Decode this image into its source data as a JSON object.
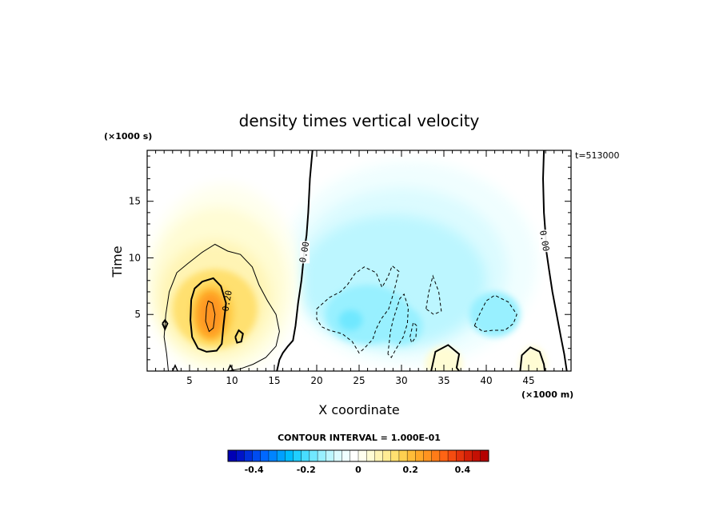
{
  "chart_data": {
    "type": "heatmap",
    "title": "density times vertical velocity",
    "xlabel": "X coordinate",
    "ylabel": "Time",
    "x_unit_note": "(×1000 m)",
    "y_unit_note": "(×1000 s)",
    "time_stamp": "t=513000",
    "xlim": [
      0,
      50
    ],
    "ylim": [
      0,
      19.5
    ],
    "x_ticks": [
      {
        "value": 5,
        "label": "5"
      },
      {
        "value": 10,
        "label": "10"
      },
      {
        "value": 15,
        "label": "15"
      },
      {
        "value": 20,
        "label": "20"
      },
      {
        "value": 25,
        "label": "25"
      },
      {
        "value": 30,
        "label": "30"
      },
      {
        "value": 35,
        "label": "35"
      },
      {
        "value": 40,
        "label": "40"
      },
      {
        "value": 45,
        "label": "45"
      }
    ],
    "y_ticks": [
      {
        "value": 5,
        "label": "5"
      },
      {
        "value": 10,
        "label": "10"
      },
      {
        "value": 15,
        "label": "15"
      }
    ],
    "contour_interval_text": "CONTOUR INTERVAL = 1.000E-01",
    "contour_labels": [
      {
        "text": "0.00",
        "x": 18.6,
        "y": 10.5
      },
      {
        "text": "0.00",
        "x": 46.8,
        "y": 11.5
      },
      {
        "text": "0.20",
        "x": 9.5,
        "y": 6.2
      }
    ],
    "features": [
      {
        "name": "positive core",
        "x": 7.5,
        "y": 5.0,
        "peak_value": 0.3
      },
      {
        "name": "negative region",
        "x": 29,
        "y": 7,
        "peak_value": -0.15
      },
      {
        "name": "small positive bump",
        "x": 35,
        "y": 1,
        "peak_value": 0.02
      },
      {
        "name": "small positive bump",
        "x": 45.5,
        "y": 1,
        "peak_value": 0.02
      }
    ],
    "colorbar": {
      "range": [
        -0.5,
        0.5
      ],
      "ticks": [
        {
          "value": -0.4,
          "label": "-0.4"
        },
        {
          "value": -0.2,
          "label": "-0.2"
        },
        {
          "value": 0,
          "label": "0"
        },
        {
          "value": 0.2,
          "label": "0.2"
        },
        {
          "value": 0.4,
          "label": "0.4"
        }
      ],
      "colors": [
        "#0000b4",
        "#0014c8",
        "#0030dc",
        "#004cf0",
        "#0068ff",
        "#0084ff",
        "#00a0ff",
        "#00bcff",
        "#20cfff",
        "#48dcff",
        "#70e8ff",
        "#98f0ff",
        "#bcf6ff",
        "#dcfbff",
        "#f0feff",
        "#ffffff",
        "#ffffee",
        "#fffcd4",
        "#fff4b4",
        "#ffec94",
        "#ffe070",
        "#ffd050",
        "#ffbc38",
        "#ffa828",
        "#ff9420",
        "#ff7c18",
        "#ff6414",
        "#f44c10",
        "#e4340c",
        "#d42008",
        "#c41004",
        "#b40000"
      ]
    }
  }
}
